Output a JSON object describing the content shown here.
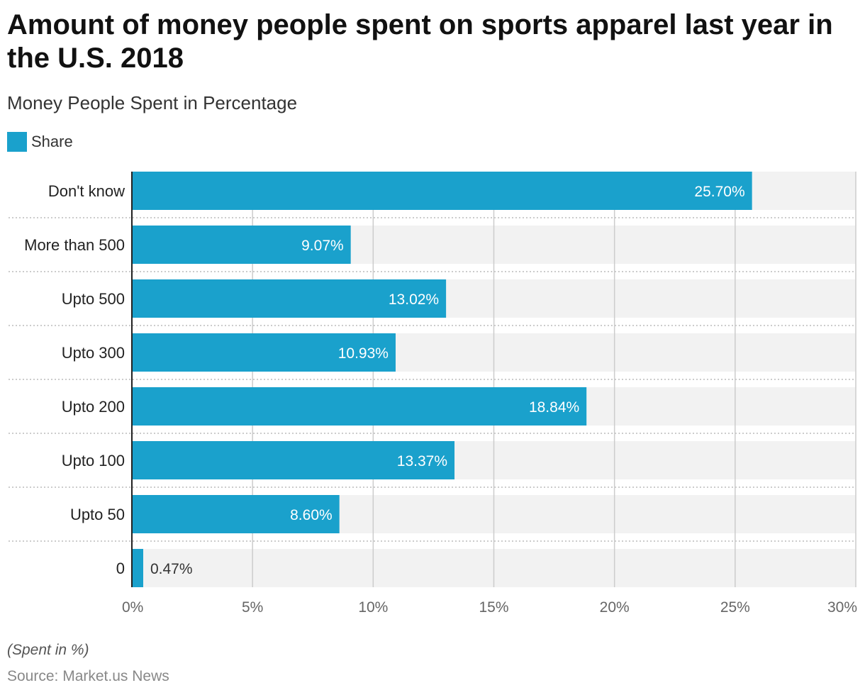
{
  "chart_data": {
    "type": "bar",
    "orientation": "horizontal",
    "title": "Amount of money people spent on sports apparel last year in the U.S. 2018",
    "subtitle": "Money People Spent in Percentage",
    "legend": [
      "Share"
    ],
    "categories": [
      "Don't know",
      "More than 500",
      "Upto 500",
      "Upto 300",
      "Upto 200",
      "Upto 100",
      "Upto 50",
      "0"
    ],
    "values": [
      25.7,
      9.07,
      13.02,
      10.93,
      18.84,
      13.37,
      8.6,
      0.47
    ],
    "data_labels": [
      "25.70%",
      "9.07%",
      "13.02%",
      "10.93%",
      "18.84%",
      "13.37%",
      "8.60%",
      "0.47%"
    ],
    "xlim": [
      0,
      30
    ],
    "xticks": [
      "0%",
      "5%",
      "10%",
      "15%",
      "20%",
      "25%",
      "30%"
    ],
    "grid": true,
    "bar_color": "#1aa1cc",
    "footnote": "(Spent in %)",
    "source": "Source: Market.us News"
  }
}
